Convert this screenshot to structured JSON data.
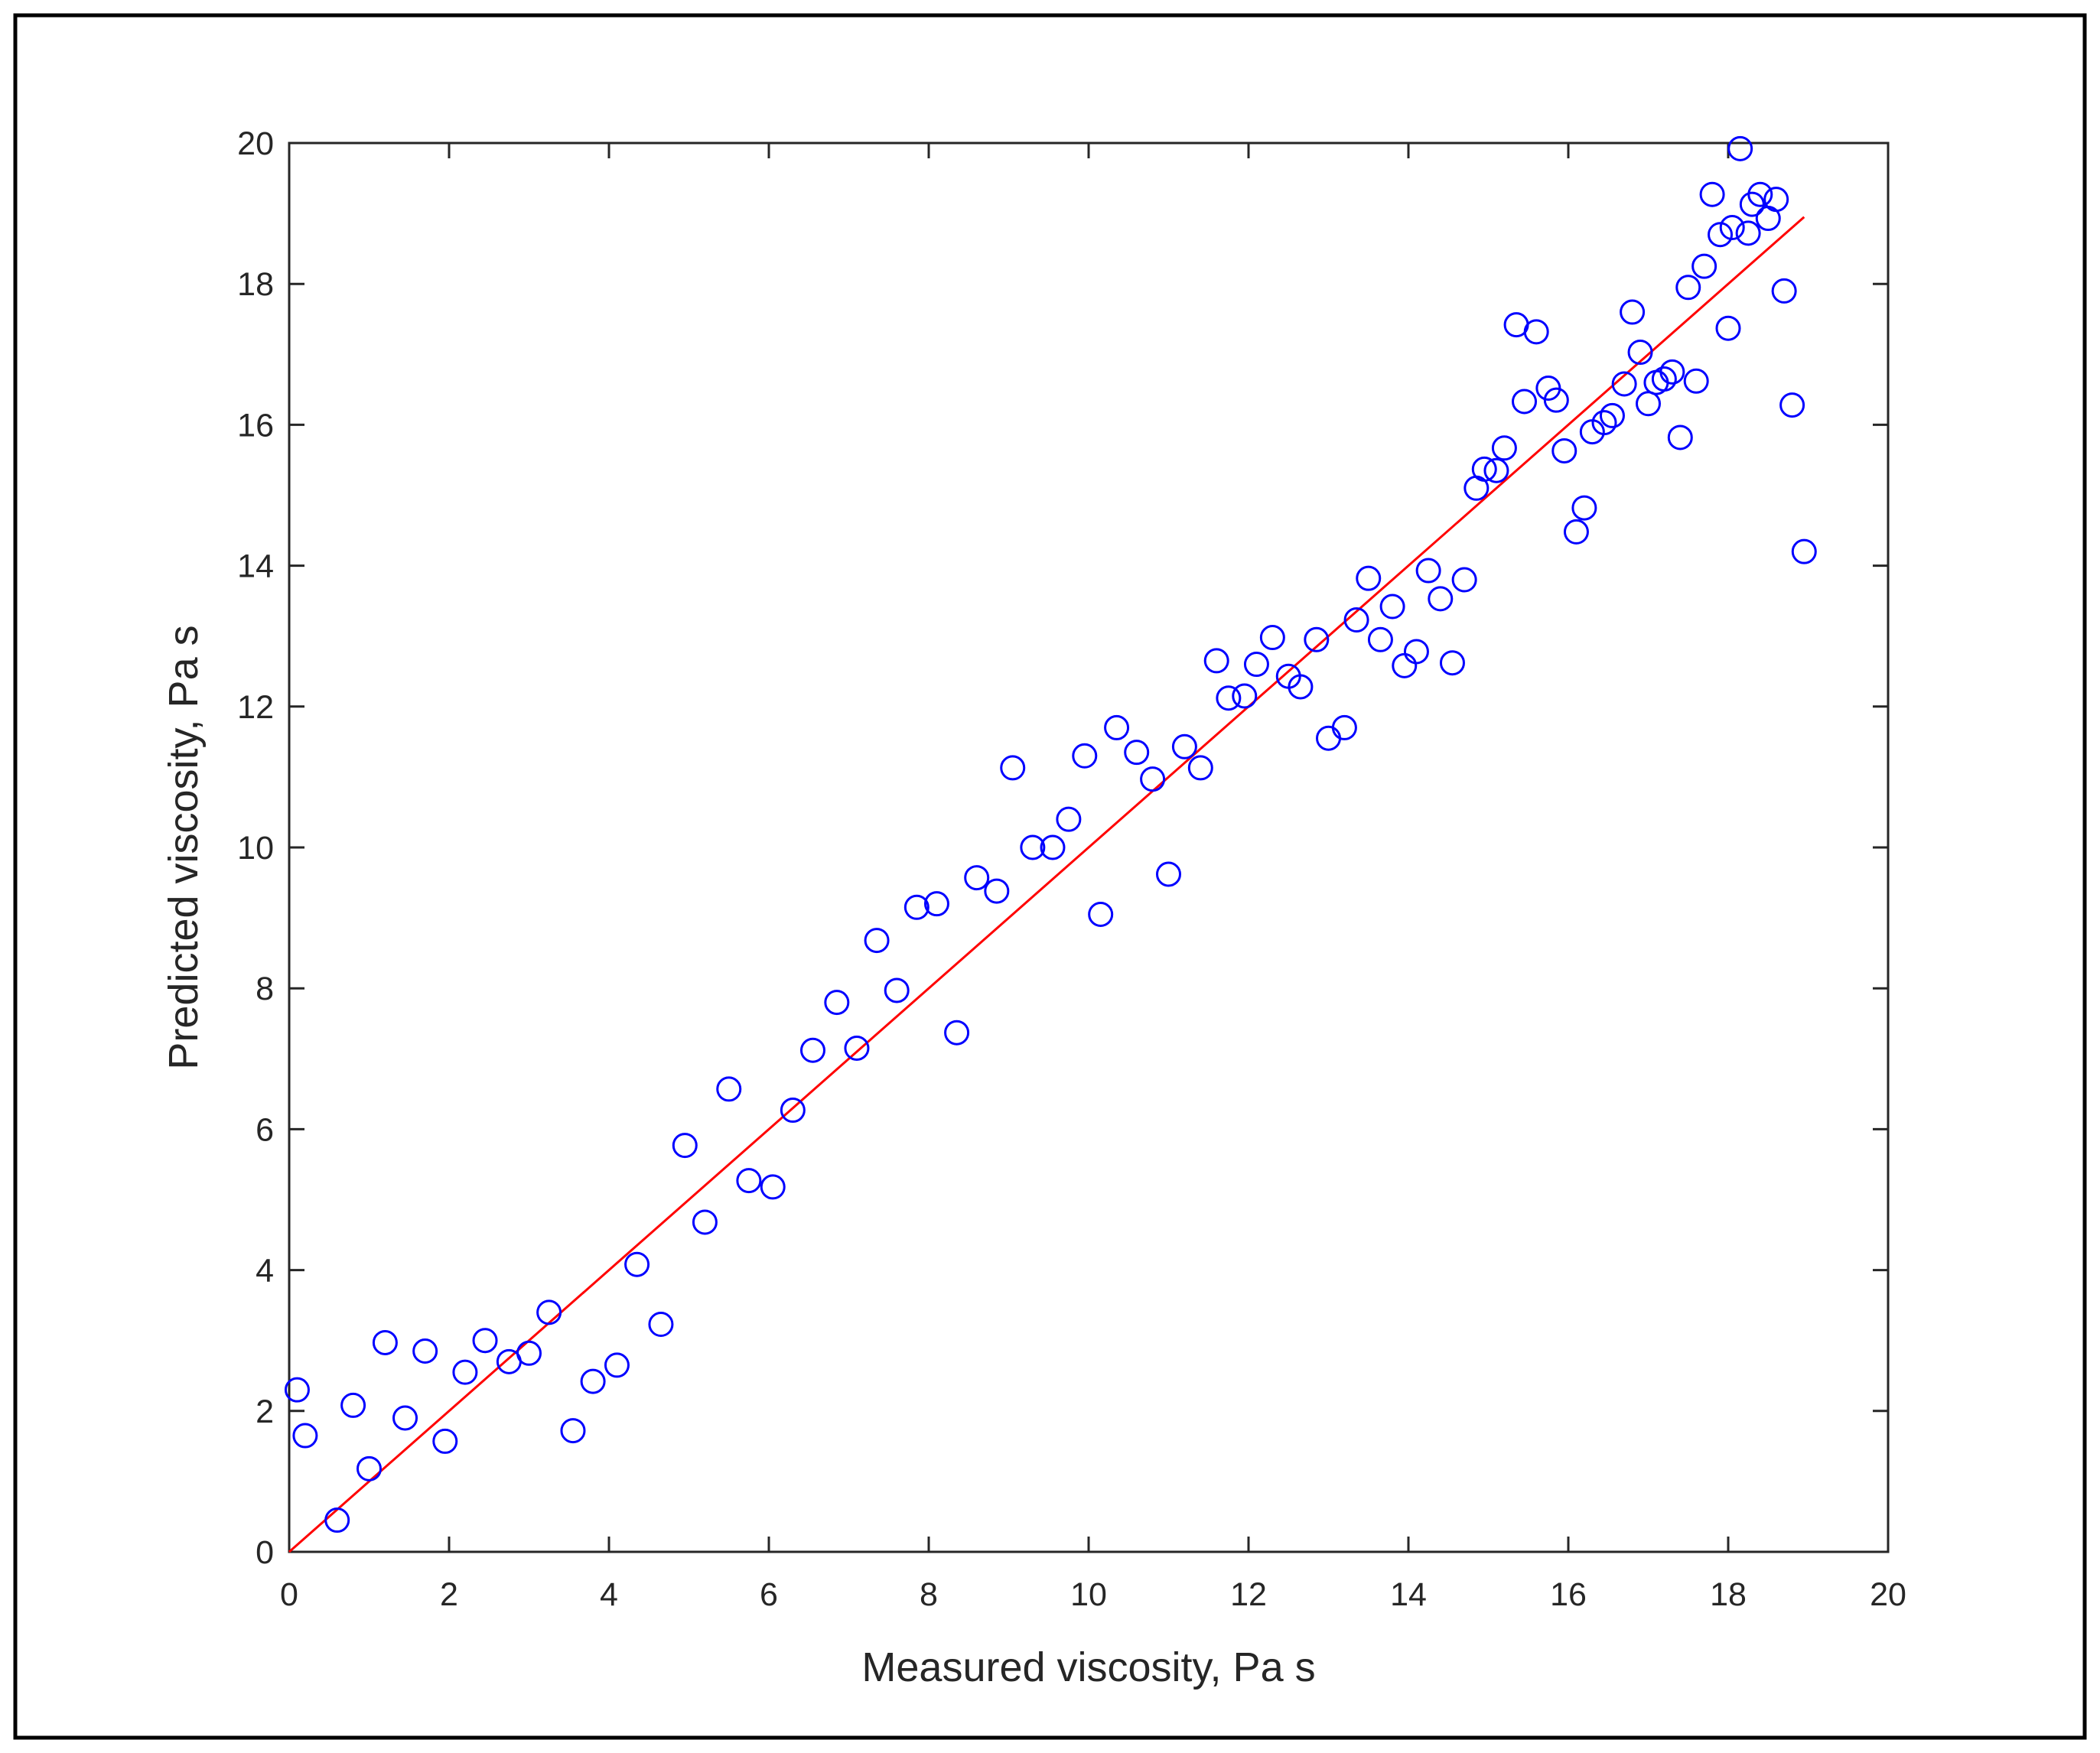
{
  "chart_data": {
    "type": "scatter",
    "title": "",
    "xlabel": "Measured viscosity, Pa s",
    "ylabel": "Predicted viscosity, Pa s",
    "xlim": [
      0,
      20
    ],
    "ylim": [
      0,
      20
    ],
    "xticks": [
      "0",
      "2",
      "4",
      "6",
      "8",
      "10",
      "12",
      "14",
      "16",
      "18",
      "20"
    ],
    "yticks": [
      "0",
      "2",
      "4",
      "6",
      "8",
      "10",
      "12",
      "14",
      "16",
      "18",
      "20"
    ],
    "grid": false,
    "legend": "none",
    "series": [
      {
        "kind": "scatter",
        "marker": "circle",
        "color": "#0000FF",
        "points": [
          [
            0.1,
            2.3
          ],
          [
            0.2,
            1.65
          ],
          [
            0.6,
            0.45
          ],
          [
            0.8,
            2.08
          ],
          [
            1.0,
            1.18
          ],
          [
            1.2,
            2.97
          ],
          [
            1.45,
            1.9
          ],
          [
            1.7,
            2.85
          ],
          [
            1.95,
            1.57
          ],
          [
            2.2,
            2.55
          ],
          [
            2.45,
            3.0
          ],
          [
            2.75,
            2.7
          ],
          [
            3.0,
            2.82
          ],
          [
            3.25,
            3.4
          ],
          [
            3.55,
            1.72
          ],
          [
            3.8,
            2.42
          ],
          [
            4.1,
            2.65
          ],
          [
            4.35,
            4.08
          ],
          [
            4.65,
            3.23
          ],
          [
            4.95,
            5.77
          ],
          [
            5.2,
            4.68
          ],
          [
            5.5,
            6.57
          ],
          [
            5.75,
            5.27
          ],
          [
            6.05,
            5.18
          ],
          [
            6.3,
            6.27
          ],
          [
            6.55,
            7.12
          ],
          [
            6.85,
            7.8
          ],
          [
            7.1,
            7.15
          ],
          [
            7.35,
            8.68
          ],
          [
            7.6,
            7.97
          ],
          [
            7.85,
            9.15
          ],
          [
            8.1,
            9.2
          ],
          [
            8.35,
            7.37
          ],
          [
            8.6,
            9.57
          ],
          [
            8.85,
            9.38
          ],
          [
            9.05,
            11.13
          ],
          [
            9.3,
            10.0
          ],
          [
            9.55,
            10.0
          ],
          [
            9.75,
            10.4
          ],
          [
            9.95,
            11.3
          ],
          [
            10.15,
            9.05
          ],
          [
            10.35,
            11.7
          ],
          [
            10.6,
            11.35
          ],
          [
            10.8,
            10.97
          ],
          [
            11.0,
            9.62
          ],
          [
            11.2,
            11.43
          ],
          [
            11.4,
            11.13
          ],
          [
            11.6,
            12.65
          ],
          [
            11.75,
            12.12
          ],
          [
            11.95,
            12.15
          ],
          [
            12.1,
            12.6
          ],
          [
            12.3,
            12.98
          ],
          [
            12.5,
            12.43
          ],
          [
            12.65,
            12.28
          ],
          [
            12.85,
            12.95
          ],
          [
            13.0,
            11.55
          ],
          [
            13.2,
            11.7
          ],
          [
            13.35,
            13.23
          ],
          [
            13.5,
            13.82
          ],
          [
            13.65,
            12.95
          ],
          [
            13.8,
            13.42
          ],
          [
            13.95,
            12.58
          ],
          [
            14.1,
            12.78
          ],
          [
            14.25,
            13.93
          ],
          [
            14.4,
            13.53
          ],
          [
            14.55,
            12.62
          ],
          [
            14.7,
            13.8
          ],
          [
            14.85,
            15.1
          ],
          [
            14.95,
            15.37
          ],
          [
            15.1,
            15.35
          ],
          [
            15.2,
            15.67
          ],
          [
            15.35,
            17.42
          ],
          [
            15.45,
            16.33
          ],
          [
            15.6,
            17.32
          ],
          [
            15.75,
            16.52
          ],
          [
            15.85,
            16.35
          ],
          [
            15.95,
            15.63
          ],
          [
            16.1,
            14.48
          ],
          [
            16.2,
            14.82
          ],
          [
            16.3,
            15.9
          ],
          [
            16.45,
            16.03
          ],
          [
            16.55,
            16.13
          ],
          [
            16.7,
            16.58
          ],
          [
            16.8,
            17.6
          ],
          [
            16.9,
            17.03
          ],
          [
            17.0,
            16.3
          ],
          [
            17.1,
            16.6
          ],
          [
            17.2,
            16.65
          ],
          [
            17.3,
            16.75
          ],
          [
            17.4,
            15.82
          ],
          [
            17.5,
            17.95
          ],
          [
            17.6,
            16.62
          ],
          [
            17.7,
            18.25
          ],
          [
            17.8,
            19.27
          ],
          [
            17.9,
            18.7
          ],
          [
            18.0,
            17.37
          ],
          [
            18.05,
            18.8
          ],
          [
            18.15,
            19.92
          ],
          [
            18.25,
            18.72
          ],
          [
            18.3,
            19.13
          ],
          [
            18.4,
            19.27
          ],
          [
            18.5,
            18.93
          ],
          [
            18.6,
            19.2
          ],
          [
            18.7,
            17.9
          ],
          [
            18.8,
            16.28
          ],
          [
            18.95,
            14.2
          ]
        ]
      },
      {
        "kind": "line",
        "color": "#FF0000",
        "points": [
          [
            0,
            0
          ],
          [
            18.95,
            18.95
          ]
        ]
      }
    ]
  }
}
